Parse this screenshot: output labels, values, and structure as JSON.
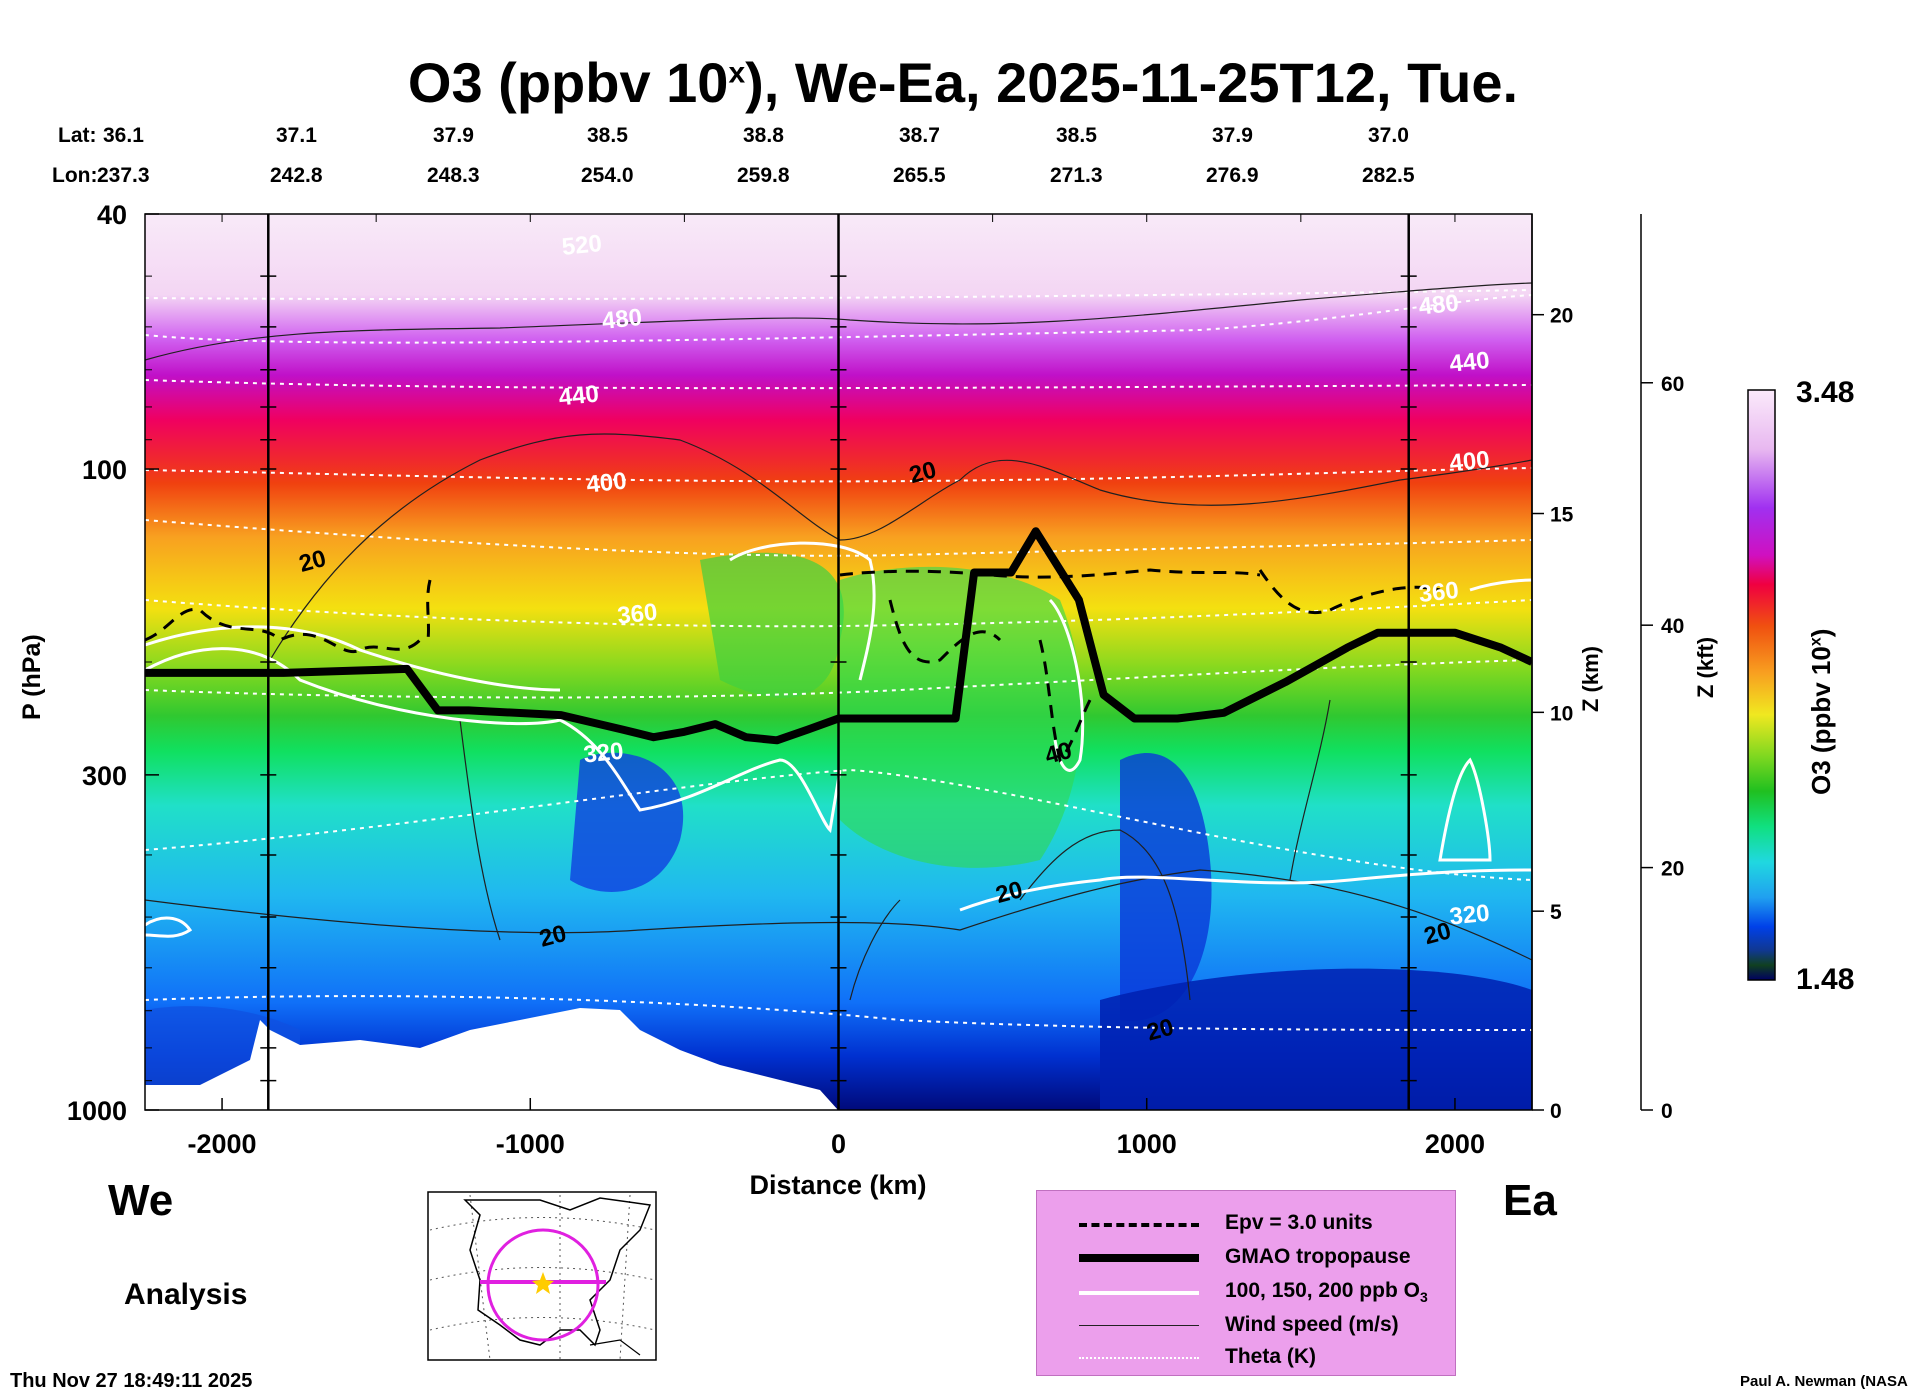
{
  "title": {
    "main": "O3 (ppbv 10",
    "sup": "x",
    "rest": "), We-Ea, 2025-11-25T12, Tue."
  },
  "latlon": {
    "lat_label": "Lat:",
    "lon_label": "Lon:",
    "lats": [
      "36.1",
      "37.1",
      "37.9",
      "38.5",
      "38.8",
      "38.7",
      "38.5",
      "37.9",
      "37.0"
    ],
    "lons": [
      "237.3",
      "242.8",
      "248.3",
      "254.0",
      "259.8",
      "265.5",
      "271.3",
      "276.9",
      "282.5"
    ]
  },
  "chart_data": {
    "type": "heatmap",
    "title": "O3 (ppbv 10^x), We-Ea, 2025-11-25T12, Tue.",
    "xlabel": "Distance (km)",
    "ylabel": "P (hPa)",
    "xlim": [
      -2250,
      2250
    ],
    "ylim": [
      1000,
      40
    ],
    "y_scale": "log",
    "x_ticks": [
      "-2000",
      "-1000",
      "0",
      "1000",
      "2000"
    ],
    "x_tick_values": [
      -2000,
      -1000,
      0,
      1000,
      2000
    ],
    "y_ticks": [
      "40",
      "100",
      "300",
      "1000"
    ],
    "y_tick_values": [
      40,
      100,
      300,
      1000
    ],
    "z_km_axis": {
      "label": "Z (km)",
      "ticks": [
        "0",
        "5",
        "10",
        "15",
        "20"
      ]
    },
    "z_kft_axis": {
      "label": "Z (kft)",
      "ticks": [
        "0",
        "20",
        "40",
        "60"
      ]
    },
    "colorbar": {
      "label": "O3 (ppbv 10",
      "label_sup": "x",
      "label_end": ")",
      "min": "1.48",
      "max": "3.48"
    },
    "vertical_lines_km": [
      -1850,
      0,
      1850
    ],
    "tropopause": {
      "x": [
        -2250,
        -1800,
        -1400,
        -1300,
        -1200,
        -900,
        -700,
        -600,
        -500,
        -400,
        -300,
        -200,
        -100,
        0,
        200,
        380,
        440,
        560,
        640,
        780,
        860,
        960,
        1100,
        1250,
        1450,
        1650,
        1750,
        2000,
        2150,
        2250
      ],
      "p": [
        208,
        208,
        205,
        238,
        238,
        242,
        255,
        262,
        257,
        250,
        262,
        265,
        255,
        245,
        245,
        245,
        145,
        145,
        125,
        160,
        225,
        245,
        245,
        240,
        215,
        190,
        180,
        180,
        190,
        200
      ]
    },
    "theta_labels": [
      {
        "text": "520",
        "x": -830,
        "p": 46
      },
      {
        "text": "480",
        "x": -700,
        "p": 60
      },
      {
        "text": "480",
        "x": 1950,
        "p": 57
      },
      {
        "text": "440",
        "x": -840,
        "p": 79
      },
      {
        "text": "440",
        "x": 2050,
        "p": 70
      },
      {
        "text": "400",
        "x": -750,
        "p": 108
      },
      {
        "text": "400",
        "x": 2050,
        "p": 100
      },
      {
        "text": "360",
        "x": -650,
        "p": 173
      },
      {
        "text": "360",
        "x": 1950,
        "p": 160
      },
      {
        "text": "320",
        "x": -760,
        "p": 285
      },
      {
        "text": "320",
        "x": 2050,
        "p": 510
      }
    ],
    "wind_labels": [
      {
        "text": "20",
        "x": -1700,
        "p": 143
      },
      {
        "text": "20",
        "x": 280,
        "p": 104
      },
      {
        "text": "20",
        "x": -920,
        "p": 550
      },
      {
        "text": "20",
        "x": 560,
        "p": 470
      },
      {
        "text": "20",
        "x": 1950,
        "p": 545
      },
      {
        "text": "20",
        "x": 1050,
        "p": 770
      },
      {
        "text": "40",
        "x": 720,
        "p": 285
      }
    ]
  },
  "labels": {
    "west": "We",
    "east": "Ea",
    "analysis": "Analysis",
    "timestamp": "Thu Nov 27 18:49:11 2025",
    "credit": "Paul A. Newman (NASA"
  },
  "legend": {
    "items": [
      {
        "label": "Epv = 3.0 units",
        "style": "dashed"
      },
      {
        "label": "GMAO tropopause",
        "style": "thick"
      },
      {
        "label": "100, 150, 200 ppb O",
        "sub": "3",
        "style": "white"
      },
      {
        "label": "Wind speed (m/s)",
        "style": "thin"
      },
      {
        "label": "Theta (K)",
        "style": "dotted"
      }
    ]
  },
  "colors": {
    "background": "#ffffff",
    "legend_bg": "#ec9fec",
    "tropopause": "#000000",
    "o3_contour": "#ffffff",
    "map_circle": "#e020e0",
    "map_star": "#ffcc00"
  }
}
